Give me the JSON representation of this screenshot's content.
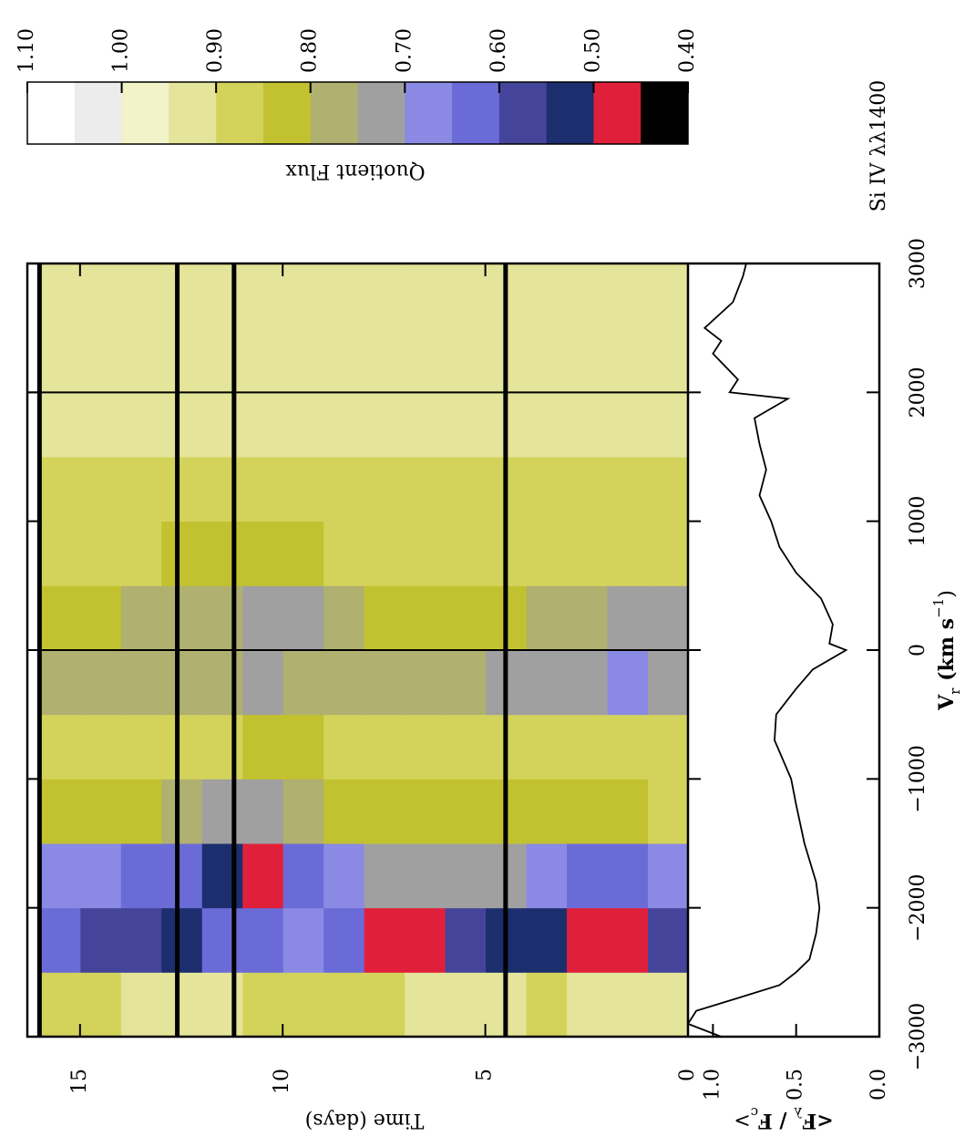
{
  "chart_data": [
    {
      "type": "heatmap",
      "title": "Si IV λλ1400",
      "x_label": "Time (days)",
      "xlim": [
        0,
        16.3
      ],
      "xticks": [
        0,
        5,
        10,
        15
      ],
      "ylim": [
        -3000,
        3000
      ],
      "time_bins": [
        0,
        1,
        2,
        3,
        4,
        5,
        6,
        7,
        8,
        9,
        10,
        11,
        12,
        13,
        14,
        15,
        16
      ],
      "velocity_bins": [
        -3000,
        -2500,
        -2000,
        -1500,
        -1000,
        -500,
        0,
        500,
        1000,
        1500,
        2000,
        2500,
        3000
      ],
      "values": [
        [
          0.9,
          0.55,
          0.68,
          0.85,
          0.88,
          0.7,
          0.74,
          0.86,
          0.89,
          0.9,
          0.92,
          0.92
        ],
        [
          0.9,
          0.48,
          0.6,
          0.82,
          0.88,
          0.68,
          0.74,
          0.85,
          0.89,
          0.9,
          0.92,
          0.92
        ],
        [
          0.9,
          0.47,
          0.62,
          0.82,
          0.87,
          0.7,
          0.76,
          0.85,
          0.88,
          0.9,
          0.91,
          0.92
        ],
        [
          0.89,
          0.52,
          0.66,
          0.83,
          0.88,
          0.7,
          0.78,
          0.86,
          0.89,
          0.9,
          0.91,
          0.92
        ],
        [
          0.9,
          0.5,
          0.7,
          0.84,
          0.88,
          0.72,
          0.8,
          0.86,
          0.89,
          0.9,
          0.92,
          0.92
        ],
        [
          0.9,
          0.55,
          0.72,
          0.84,
          0.88,
          0.76,
          0.8,
          0.86,
          0.89,
          0.9,
          0.92,
          0.91
        ],
        [
          0.9,
          0.48,
          0.72,
          0.84,
          0.88,
          0.78,
          0.8,
          0.86,
          0.89,
          0.9,
          0.91,
          0.92
        ],
        [
          0.89,
          0.47,
          0.7,
          0.83,
          0.87,
          0.77,
          0.8,
          0.86,
          0.88,
          0.9,
          0.92,
          0.92
        ],
        [
          0.88,
          0.6,
          0.66,
          0.8,
          0.86,
          0.78,
          0.78,
          0.85,
          0.88,
          0.9,
          0.91,
          0.92
        ],
        [
          0.86,
          0.66,
          0.6,
          0.76,
          0.84,
          0.76,
          0.72,
          0.8,
          0.88,
          0.9,
          0.92,
          0.92
        ],
        [
          0.88,
          0.62,
          0.48,
          0.7,
          0.82,
          0.74,
          0.7,
          0.8,
          0.87,
          0.9,
          0.91,
          0.92
        ],
        [
          0.9,
          0.6,
          0.52,
          0.74,
          0.85,
          0.76,
          0.75,
          0.82,
          0.88,
          0.9,
          0.92,
          0.92
        ],
        [
          0.9,
          0.5,
          0.6,
          0.78,
          0.86,
          0.76,
          0.76,
          0.84,
          0.88,
          0.9,
          0.92,
          0.92
        ],
        [
          0.9,
          0.56,
          0.64,
          0.8,
          0.87,
          0.77,
          0.78,
          0.85,
          0.89,
          0.9,
          0.91,
          0.92
        ],
        [
          0.88,
          0.58,
          0.66,
          0.82,
          0.87,
          0.78,
          0.8,
          0.85,
          0.89,
          0.9,
          0.92,
          0.92
        ],
        [
          0.89,
          0.6,
          0.68,
          0.82,
          0.88,
          0.78,
          0.8,
          0.86,
          0.89,
          0.9,
          0.92,
          0.92
        ]
      ],
      "gaps": [
        4.5,
        11.2,
        12.6,
        16.0
      ],
      "reference_velocities": [
        0,
        2000
      ],
      "colorbar": {
        "label": "Quotient Flux",
        "lim": [
          0.4,
          1.1
        ],
        "levels": [
          1.1,
          1.05,
          1.0,
          0.95,
          0.9,
          0.85,
          0.8,
          0.75,
          0.7,
          0.65,
          0.6,
          0.55,
          0.5,
          0.45,
          0.4
        ],
        "colors": [
          "#ffffff",
          "#ececec",
          "#f3f3c9",
          "#e4e49a",
          "#d3d35c",
          "#c2c230",
          "#b0b070",
          "#a0a0a0",
          "#8a8ae4",
          "#6b6bd8",
          "#44449a",
          "#1c2e6e",
          "#e0203a",
          "#000000"
        ],
        "ticks": [
          {
            "value": 1.1,
            "label": "1.10"
          },
          {
            "value": 1.0,
            "label": "1.00"
          },
          {
            "value": 0.9,
            "label": "0.90"
          },
          {
            "value": 0.8,
            "label": "0.80"
          },
          {
            "value": 0.7,
            "label": "0.70"
          },
          {
            "value": 0.6,
            "label": "0.60"
          },
          {
            "value": 0.5,
            "label": "0.50"
          },
          {
            "value": 0.4,
            "label": "0.40"
          }
        ]
      }
    },
    {
      "type": "line",
      "x_label_parts": [
        "V",
        "r",
        " (km s",
        "−1",
        ")"
      ],
      "y_label_parts": [
        "<F",
        "λ",
        " / F",
        "c",
        ">"
      ],
      "color": "#000000",
      "x": [
        -3000,
        -2900,
        -2800,
        -2700,
        -2600,
        -2500,
        -2400,
        -2200,
        -2000,
        -1800,
        -1500,
        -1200,
        -1000,
        -700,
        -500,
        -300,
        -150,
        0,
        50,
        200,
        400,
        600,
        800,
        1000,
        1200,
        1400,
        1600,
        1800,
        1950,
        2000,
        2100,
        2300,
        2400,
        2500,
        2700,
        2900,
        3000
      ],
      "values": [
        0.95,
        1.15,
        1.1,
        0.85,
        0.6,
        0.5,
        0.42,
        0.38,
        0.36,
        0.38,
        0.45,
        0.5,
        0.53,
        0.63,
        0.62,
        0.5,
        0.4,
        0.2,
        0.3,
        0.28,
        0.35,
        0.5,
        0.6,
        0.65,
        0.72,
        0.68,
        0.72,
        0.75,
        0.55,
        0.9,
        0.85,
        1.0,
        0.95,
        1.05,
        0.88,
        0.82,
        0.8
      ],
      "xlim": [
        -3000,
        3000
      ],
      "xticks": [
        {
          "value": -3000,
          "label": "−3000"
        },
        {
          "value": -2000,
          "label": "−2000"
        },
        {
          "value": -1000,
          "label": "−1000"
        },
        0,
        1000,
        2000,
        3000
      ],
      "ylim": [
        0,
        1.15
      ],
      "yticks": [
        {
          "value": 0,
          "label": "0.0"
        },
        {
          "value": 0.5,
          "label": "0.5"
        },
        {
          "value": 1,
          "label": "1.0"
        }
      ]
    }
  ]
}
